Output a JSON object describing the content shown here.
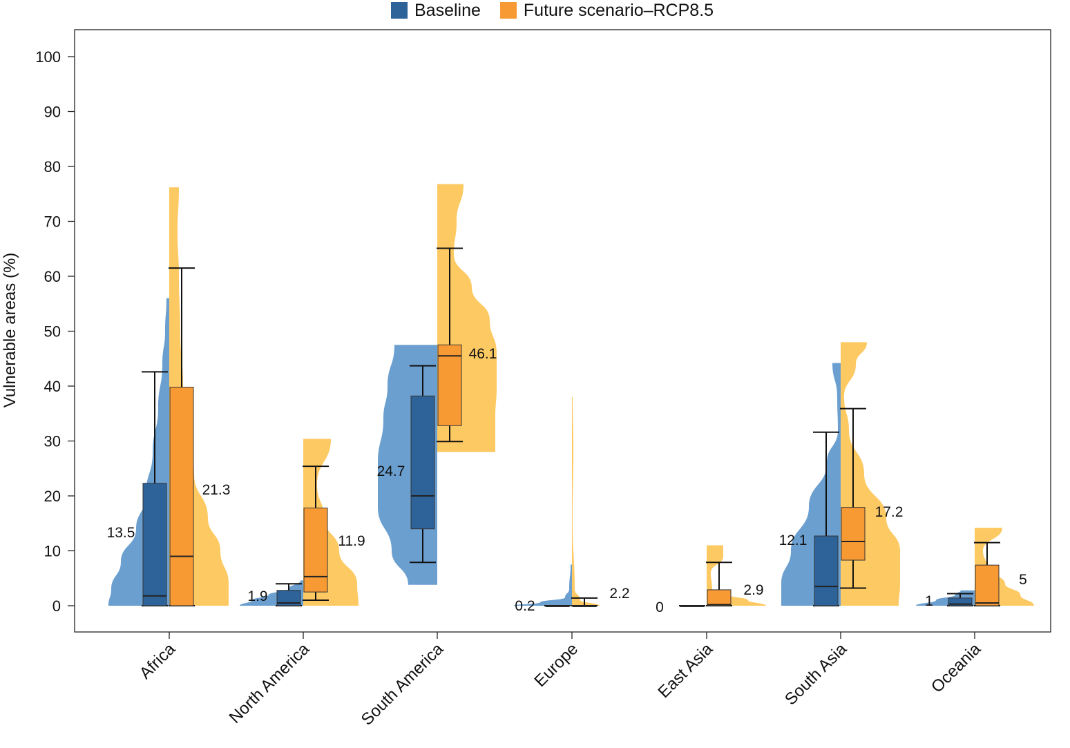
{
  "chart_data": {
    "type": "violin",
    "title": "",
    "xlabel": "",
    "ylabel": "Vulnerable areas (%)",
    "ylim": [
      -5,
      105
    ],
    "yticks": [
      0,
      10,
      20,
      30,
      40,
      50,
      60,
      70,
      80,
      90,
      100
    ],
    "legend_position": "top-center",
    "categories": [
      "Africa",
      "North America",
      "South America",
      "Europe",
      "East Asia",
      "South Asia",
      "Oceania"
    ],
    "series": [
      {
        "name": "Baseline",
        "box_color": "#2E6399",
        "violin_color": "#6B9FD0",
        "side": "left",
        "means": [
          "13.5",
          "1.9",
          "24.7",
          "0.2",
          "0",
          "12.1",
          "1"
        ],
        "q1": [
          0,
          0,
          14,
          0,
          0,
          0,
          0
        ],
        "median": [
          1.8,
          0.5,
          20,
          0,
          0,
          3.5,
          0.3
        ],
        "q3": [
          22.3,
          2.8,
          38.2,
          0,
          0,
          12.7,
          1.4
        ],
        "wlow": [
          0,
          0,
          7.9,
          0,
          0,
          0,
          0
        ],
        "whigh": [
          42.6,
          4.0,
          43.7,
          0,
          0,
          31.6,
          2.2
        ],
        "vmin": [
          0,
          0,
          3.8,
          0,
          0,
          0,
          0
        ],
        "vmax": [
          56,
          4.6,
          47.5,
          7.5,
          0,
          44.2,
          2.8
        ]
      },
      {
        "name": "Future scenario–RCP8.5",
        "box_color": "#F89A34",
        "violin_color": "#FDC962",
        "side": "right",
        "means": [
          "21.3",
          "11.9",
          "46.1",
          "2.2",
          "2.9",
          "17.2",
          "5"
        ],
        "q1": [
          0,
          2.5,
          32.8,
          0,
          0,
          8.3,
          0
        ],
        "median": [
          9,
          5.3,
          45.5,
          0,
          0.2,
          11.7,
          0.5
        ],
        "q3": [
          39.8,
          17.8,
          47.5,
          0,
          2.9,
          17.9,
          7.4
        ],
        "wlow": [
          0,
          1.0,
          29.9,
          0,
          0,
          3.2,
          0
        ],
        "whigh": [
          61.5,
          25.4,
          65.1,
          1.4,
          7.9,
          35.9,
          11.5
        ],
        "vmin": [
          0,
          0,
          28,
          0,
          0,
          0,
          0
        ],
        "vmax": [
          76.2,
          30.4,
          76.8,
          38,
          11,
          48,
          14.2
        ]
      }
    ]
  }
}
